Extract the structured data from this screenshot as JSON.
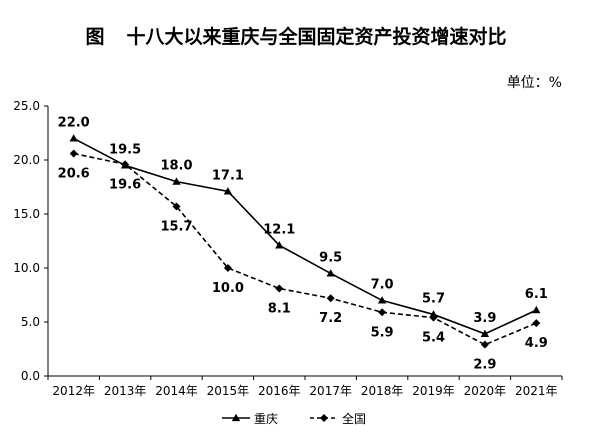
{
  "chart_data": {
    "type": "line",
    "title_prefix": "图",
    "title": "十八大以来重庆与全国固定资产投资增速对比",
    "unit_label": "单位：%",
    "categories": [
      "2012年",
      "2013年",
      "2014年",
      "2015年",
      "2016年",
      "2017年",
      "2018年",
      "2019年",
      "2020年",
      "2021年"
    ],
    "ylim": [
      0,
      25
    ],
    "yticks": [
      "0.0",
      "5.0",
      "10.0",
      "15.0",
      "20.0",
      "25.0"
    ],
    "grid": false,
    "legend_position": "bottom",
    "series": [
      {
        "name": "重庆",
        "marker": "triangle",
        "line_style": "solid",
        "color": "#000000",
        "values": [
          22.0,
          19.5,
          18.0,
          17.1,
          12.1,
          9.5,
          7.0,
          5.7,
          3.9,
          6.1
        ],
        "labels": [
          "22.0",
          "19.5",
          "18.0",
          "17.1",
          "12.1",
          "9.5",
          "7.0",
          "5.7",
          "3.9",
          "6.1"
        ]
      },
      {
        "name": "全国",
        "marker": "diamond",
        "line_style": "dashed",
        "color": "#000000",
        "values": [
          20.6,
          19.6,
          15.7,
          10.0,
          8.1,
          7.2,
          5.9,
          5.4,
          2.9,
          4.9
        ],
        "labels": [
          "20.6",
          "19.6",
          "15.7",
          "10.0",
          "8.1",
          "7.2",
          "5.9",
          "5.4",
          "2.9",
          "4.9"
        ]
      }
    ]
  }
}
